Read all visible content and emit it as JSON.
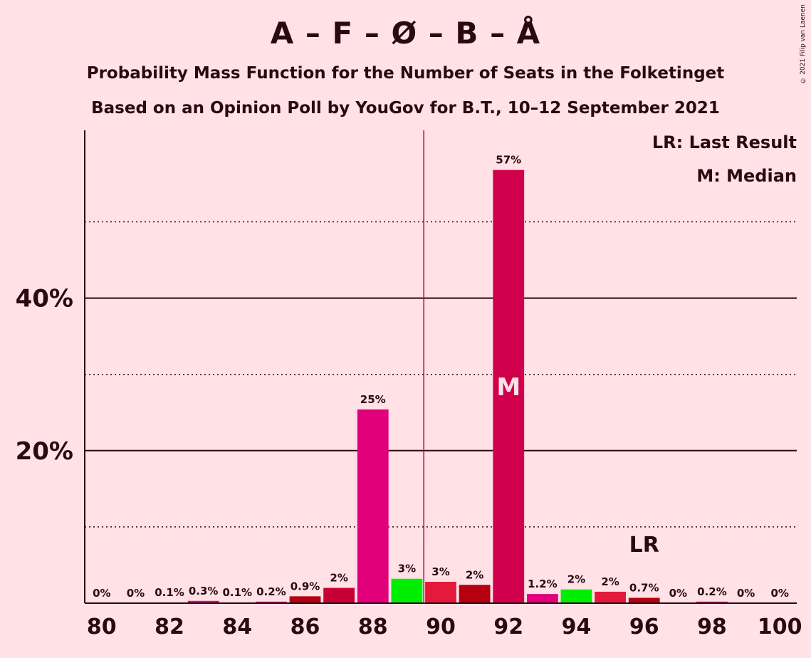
{
  "title": "A – F – Ø – B – Å",
  "subtitle1": "Probability Mass Function for the Number of Seats in the Folketinget",
  "subtitle2": "Based on an Opinion Poll by YouGov for B.T., 10–12 September 2021",
  "copyright": "© 2021 Filip van Laenen",
  "legend": {
    "last_result": "LR: Last Result",
    "median": "M: Median"
  },
  "markers": {
    "median_label": "M",
    "last_result_label": "LR",
    "median_seats": 92,
    "last_result_seats": 96,
    "majority_line_seats": 89.5
  },
  "colors": {
    "background": "#FFE1E6",
    "axis": "#2a0a12",
    "majority_line": "#C8003C"
  },
  "chart_data": {
    "type": "bar",
    "x": [
      80,
      81,
      82,
      83,
      84,
      85,
      86,
      87,
      88,
      89,
      90,
      91,
      92,
      93,
      94,
      95,
      96,
      97,
      98,
      99,
      100
    ],
    "values": [
      0,
      0,
      0.1,
      0.3,
      0.1,
      0.2,
      0.9,
      2,
      25.4,
      3.2,
      2.8,
      2.4,
      56.8,
      1.2,
      1.8,
      1.5,
      0.7,
      0,
      0.2,
      0,
      0
    ],
    "labels": [
      "0%",
      "0%",
      "0.1%",
      "0.3%",
      "0.1%",
      "0.2%",
      "0.9%",
      "2%",
      "25%",
      "3%",
      "3%",
      "2%",
      "57%",
      "1.2%",
      "2%",
      "2%",
      "0.7%",
      "0%",
      "0.2%",
      "0%",
      "0%"
    ],
    "bar_colors": [
      "#E2007A",
      "#E2007A",
      "#E2007A",
      "#E2007A",
      "#E2007A",
      "#E2007A",
      "#B5000F",
      "#C60035",
      "#E2007A",
      "#00EE00",
      "#E31A3C",
      "#B5000F",
      "#D0004D",
      "#E2007A",
      "#00EE00",
      "#E31A3C",
      "#B5000F",
      "#E2007A",
      "#E2007A",
      "#E2007A",
      "#E2007A"
    ],
    "x_ticks": [
      "80",
      "82",
      "84",
      "86",
      "88",
      "90",
      "92",
      "94",
      "96",
      "98",
      "100"
    ],
    "y_ticks": [
      {
        "value": 20,
        "label": "20%"
      },
      {
        "value": 40,
        "label": "40%"
      }
    ],
    "minor_gridlines": [
      10,
      30,
      50
    ],
    "ylim": [
      0,
      62
    ],
    "xlim": [
      79.5,
      100.5
    ]
  }
}
